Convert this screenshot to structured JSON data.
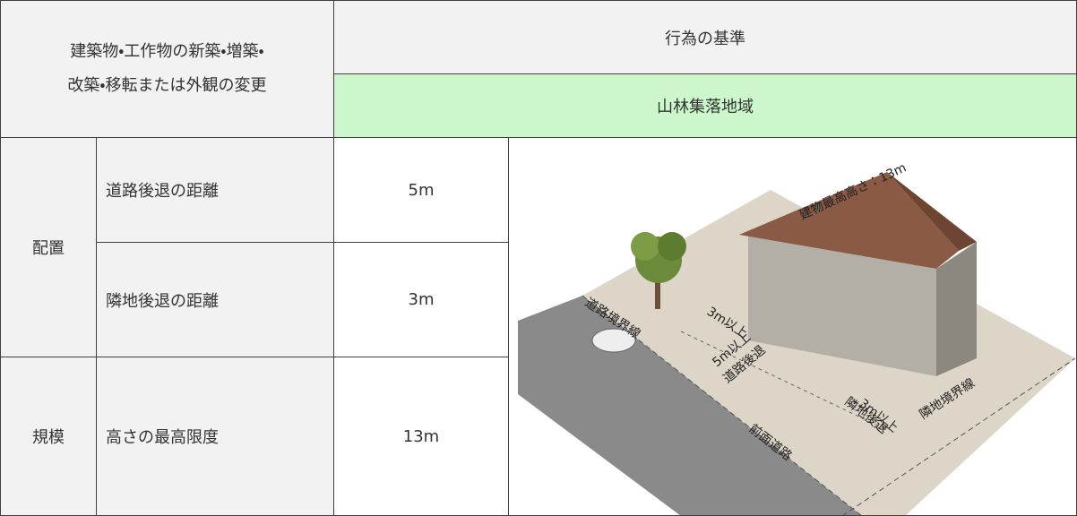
{
  "table": {
    "header": {
      "subject": [
        "建築物・工作物の新築・増築・",
        "改築・移転または外観の変更"
      ],
      "criteria": "行為の基準",
      "area": "山林集落地域"
    },
    "rows": [
      {
        "group": "配置",
        "item": "道路後退の距離",
        "value": "5m"
      },
      {
        "item": "隣地後退の距離",
        "value": "3m"
      },
      {
        "group": "規模",
        "item": "高さの最高限度",
        "value": "13m"
      }
    ]
  },
  "illustration": {
    "height_label": "建物最高高さ：13m",
    "road_boundary": "道路境界線",
    "setback_3m": "3m以上",
    "road_setback": [
      "5m以上",
      "道路後退"
    ],
    "neighbor_setback": [
      "3m以上",
      "隣地後退"
    ],
    "neighbor_boundary": "隣地境界線",
    "front_road": "前面道路"
  }
}
